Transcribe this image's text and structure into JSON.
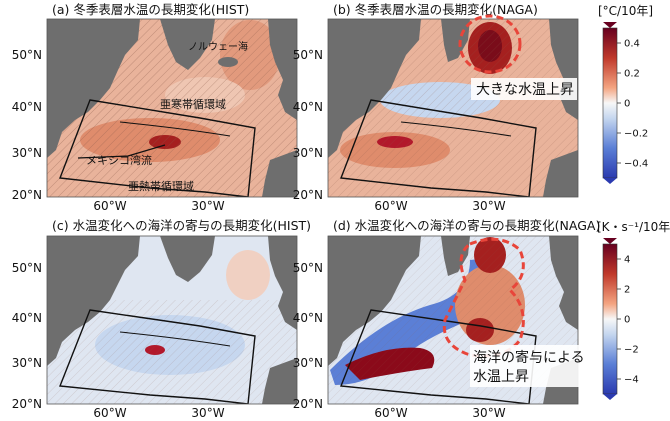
{
  "panels": {
    "a": {
      "title": "(a) 冬季表層水温の長期変化(HIST)",
      "labels": {
        "norway": "ノルウェー海",
        "subpolar": "亜寒帯循環域",
        "gulf": "メキシコ湾流",
        "subtropical": "亜熱帯循環域"
      }
    },
    "b": {
      "title": "(b) 冬季表層水温の長期変化(NAGA)",
      "callout": "大きな水温上昇"
    },
    "c": {
      "title": "(c) 水温変化への海洋の寄与の長期変化(HIST)"
    },
    "d": {
      "title": "(d) 水温変化への海洋の寄与の長期変化(NAGA)",
      "callout_line1": "海洋の寄与による",
      "callout_line2": "水温上昇"
    }
  },
  "axes": {
    "lat_ticks_top": [
      "50°N",
      "40°N",
      "30°N",
      "20°N"
    ],
    "lat_ticks_bottom": [
      "50°N",
      "40°N",
      "30°N",
      "20°N"
    ],
    "lon_ticks": [
      "60°W",
      "30°W"
    ]
  },
  "colorbar_top": {
    "unit": "[°C/10年]",
    "ticks": [
      "0.4",
      "0.2",
      "0",
      "−0.2",
      "−0.4"
    ],
    "range": [
      -0.5,
      0.5
    ]
  },
  "colorbar_bottom": {
    "unit": "[K・s⁻¹/10年]",
    "ticks": [
      "4",
      "2",
      "0",
      "−2",
      "−4"
    ],
    "range": [
      -5,
      5
    ]
  },
  "colors": {
    "land": "#6e6e6e",
    "warm_light": "#e9b39b",
    "warm": "#d9795a",
    "warm_strong": "#b2182b",
    "warm_dark": "#7a0c1a",
    "neutral": "#f2f2f2",
    "cool_light": "#c6d7ef",
    "cool": "#7ea3dd",
    "cool_strong": "#3b5fc0",
    "highlight": "#e8453a"
  }
}
